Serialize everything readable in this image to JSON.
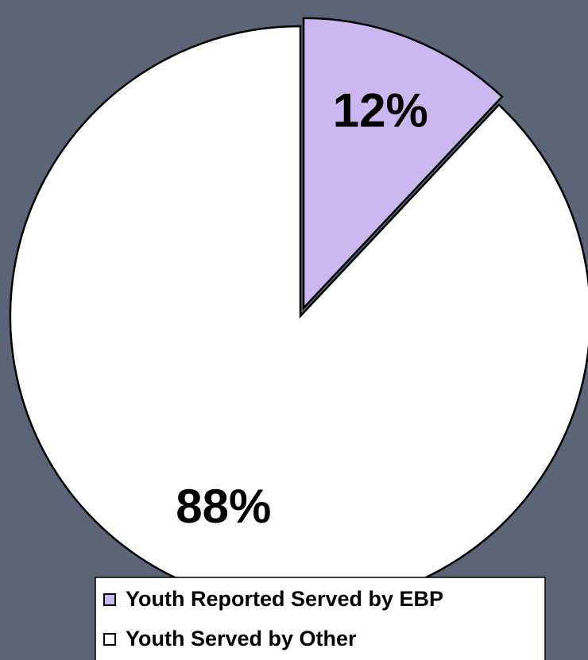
{
  "chart_data": {
    "type": "pie",
    "categories": [
      "Youth Reported Served by EBP",
      "Youth Served by Other"
    ],
    "values": [
      12,
      88
    ],
    "value_labels": [
      "12%",
      "88%"
    ],
    "colors": [
      "#ccb8f0",
      "#ffffff"
    ],
    "exploded": [
      true,
      false
    ],
    "legend": "bottom"
  }
}
